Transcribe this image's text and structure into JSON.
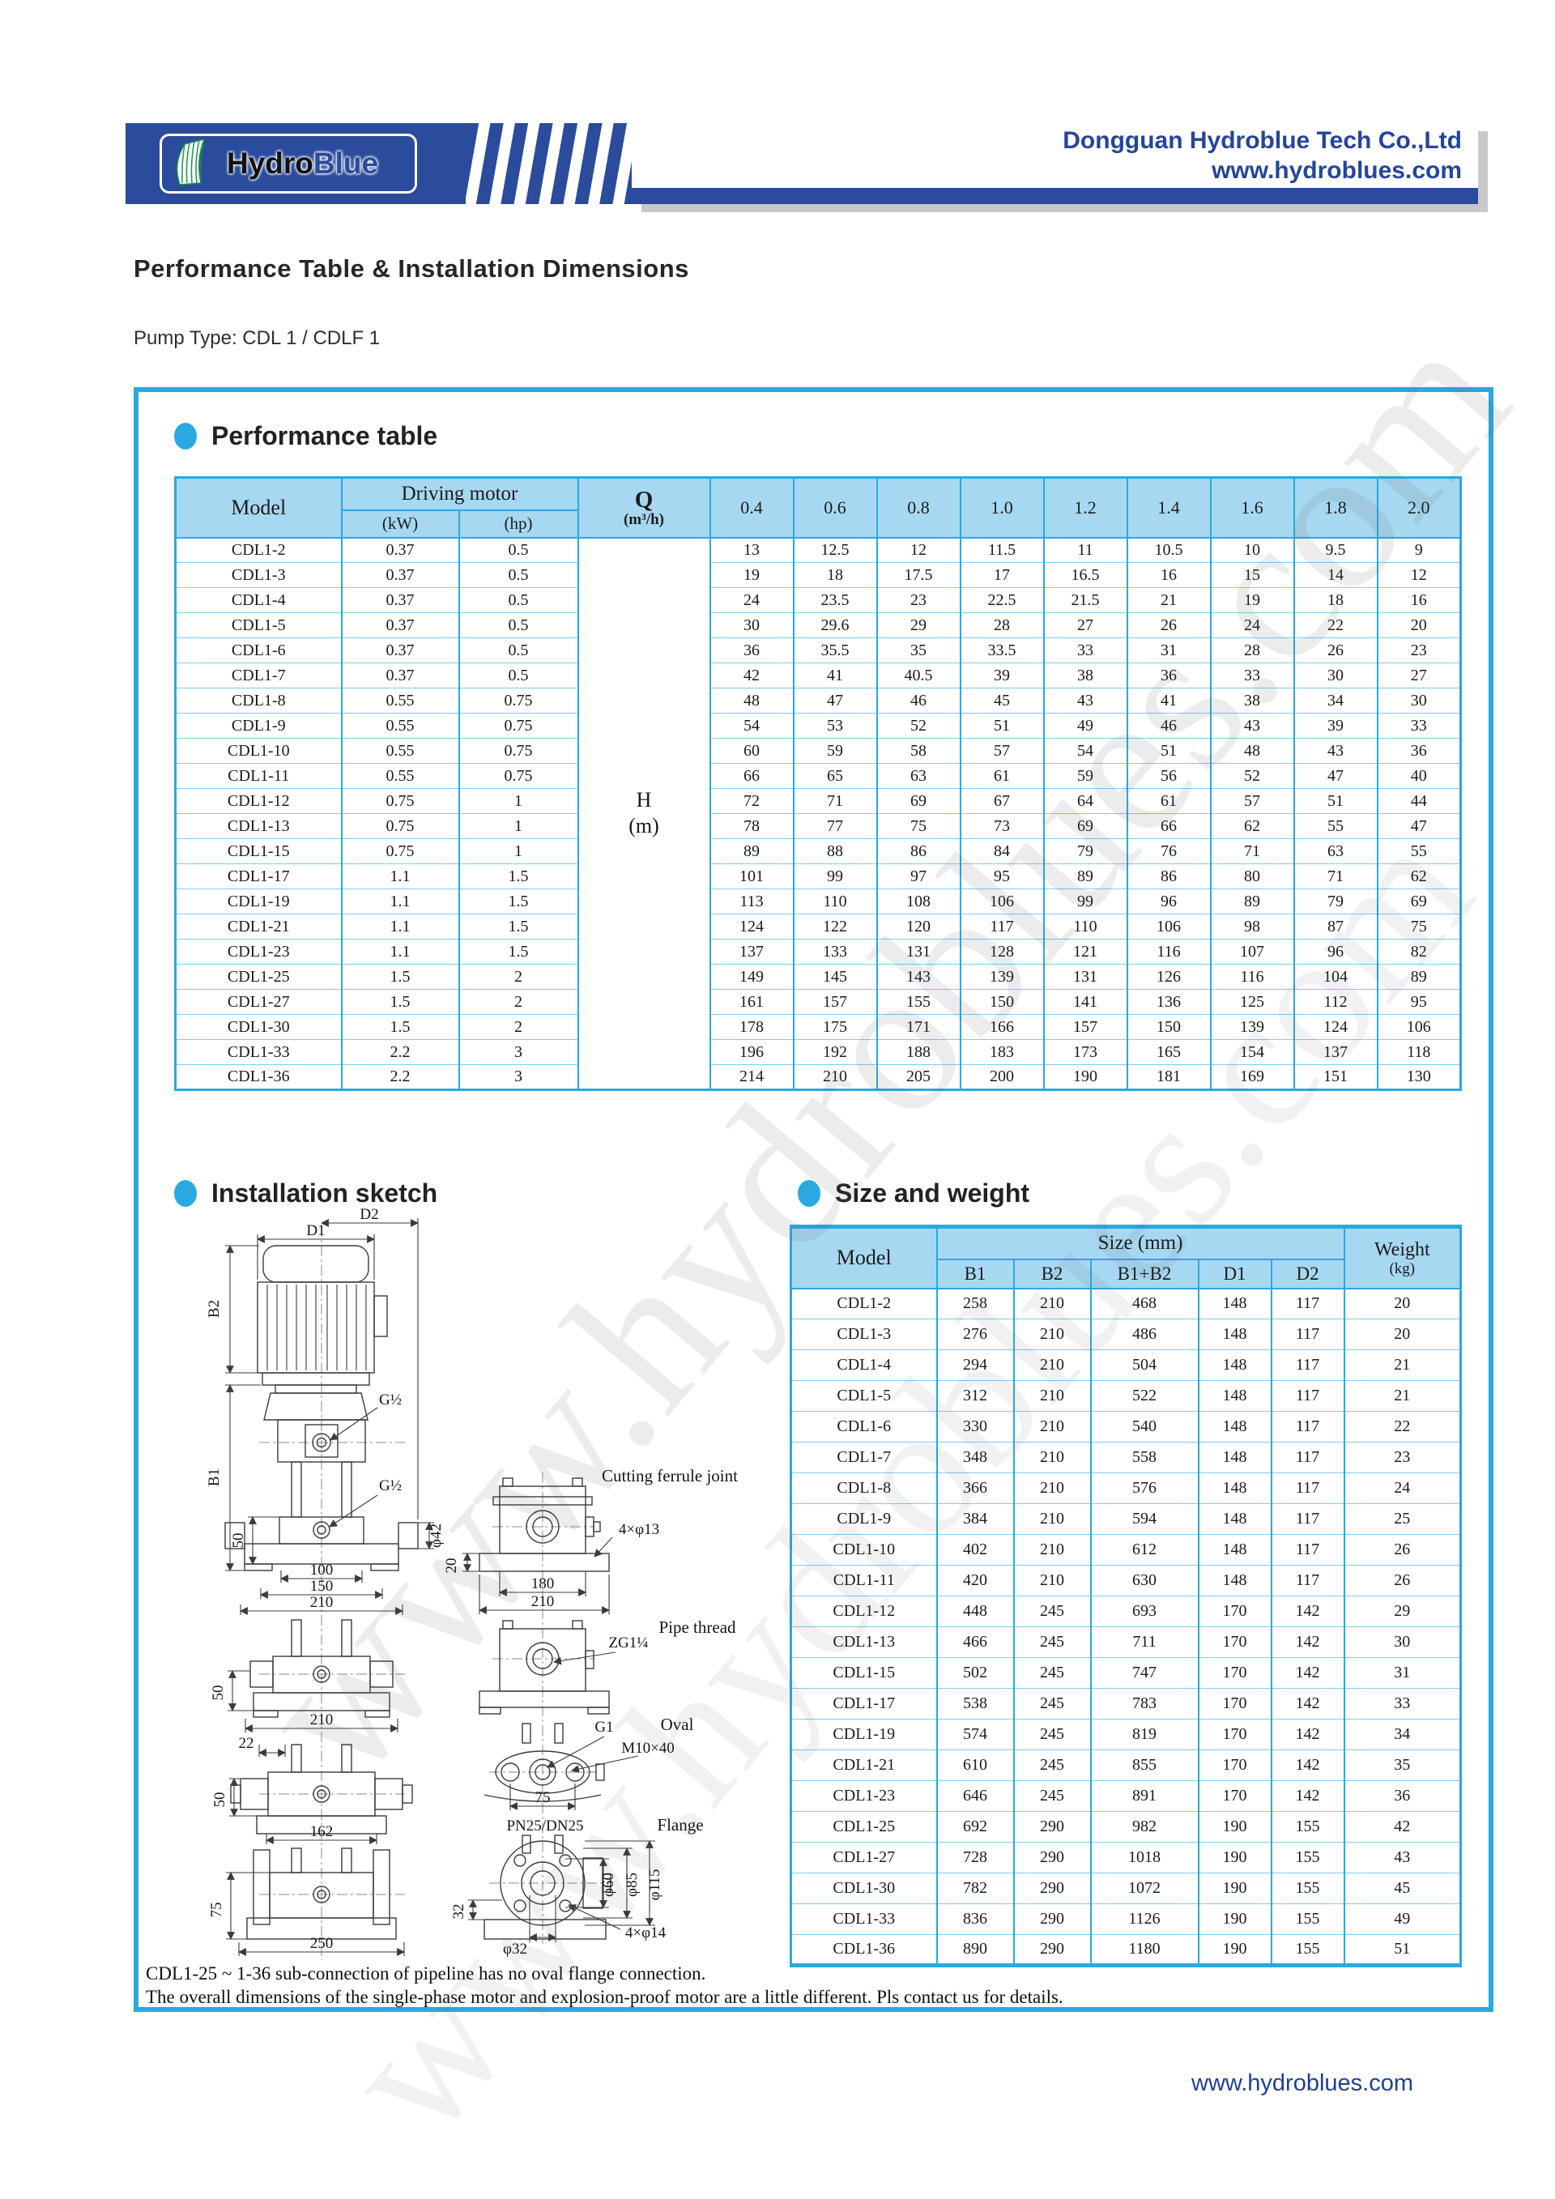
{
  "header": {
    "logo_hydro": "Hydro",
    "logo_blue": "Blue",
    "company_name": "Dongguan Hydroblue Tech Co.,Ltd",
    "website": "www.hydroblues.com"
  },
  "page": {
    "title": "Performance Table & Installation Dimensions",
    "pump_type": "Pump Type: CDL 1 / CDLF 1",
    "footer_website": "www.hydroblues.com",
    "watermark": "www.hydroblues.com"
  },
  "sections": {
    "performance": "Performance table",
    "installation": "Installation sketch",
    "size_weight": "Size and weight"
  },
  "performance_table": {
    "header": {
      "model": "Model",
      "driving_motor": "Driving motor",
      "kw": "(kW)",
      "hp": "(hp)",
      "q": "Q",
      "q_unit": "(m³/h)",
      "h_top": "H",
      "h_unit": "(m)",
      "flow_columns": [
        "0.4",
        "0.6",
        "0.8",
        "1.0",
        "1.2",
        "1.4",
        "1.6",
        "1.8",
        "2.0"
      ]
    },
    "rows": [
      {
        "model": "CDL1-2",
        "kw": "0.37",
        "hp": "0.5",
        "values": [
          "13",
          "12.5",
          "12",
          "11.5",
          "11",
          "10.5",
          "10",
          "9.5",
          "9"
        ]
      },
      {
        "model": "CDL1-3",
        "kw": "0.37",
        "hp": "0.5",
        "values": [
          "19",
          "18",
          "17.5",
          "17",
          "16.5",
          "16",
          "15",
          "14",
          "12"
        ]
      },
      {
        "model": "CDL1-4",
        "kw": "0.37",
        "hp": "0.5",
        "values": [
          "24",
          "23.5",
          "23",
          "22.5",
          "21.5",
          "21",
          "19",
          "18",
          "16"
        ]
      },
      {
        "model": "CDL1-5",
        "kw": "0.37",
        "hp": "0.5",
        "values": [
          "30",
          "29.6",
          "29",
          "28",
          "27",
          "26",
          "24",
          "22",
          "20"
        ]
      },
      {
        "model": "CDL1-6",
        "kw": "0.37",
        "hp": "0.5",
        "values": [
          "36",
          "35.5",
          "35",
          "33.5",
          "33",
          "31",
          "28",
          "26",
          "23"
        ]
      },
      {
        "model": "CDL1-7",
        "kw": "0.37",
        "hp": "0.5",
        "values": [
          "42",
          "41",
          "40.5",
          "39",
          "38",
          "36",
          "33",
          "30",
          "27"
        ]
      },
      {
        "model": "CDL1-8",
        "kw": "0.55",
        "hp": "0.75",
        "values": [
          "48",
          "47",
          "46",
          "45",
          "43",
          "41",
          "38",
          "34",
          "30"
        ]
      },
      {
        "model": "CDL1-9",
        "kw": "0.55",
        "hp": "0.75",
        "values": [
          "54",
          "53",
          "52",
          "51",
          "49",
          "46",
          "43",
          "39",
          "33"
        ]
      },
      {
        "model": "CDL1-10",
        "kw": "0.55",
        "hp": "0.75",
        "values": [
          "60",
          "59",
          "58",
          "57",
          "54",
          "51",
          "48",
          "43",
          "36"
        ]
      },
      {
        "model": "CDL1-11",
        "kw": "0.55",
        "hp": "0.75",
        "values": [
          "66",
          "65",
          "63",
          "61",
          "59",
          "56",
          "52",
          "47",
          "40"
        ]
      },
      {
        "model": "CDL1-12",
        "kw": "0.75",
        "hp": "1",
        "values": [
          "72",
          "71",
          "69",
          "67",
          "64",
          "61",
          "57",
          "51",
          "44"
        ]
      },
      {
        "model": "CDL1-13",
        "kw": "0.75",
        "hp": "1",
        "values": [
          "78",
          "77",
          "75",
          "73",
          "69",
          "66",
          "62",
          "55",
          "47"
        ]
      },
      {
        "model": "CDL1-15",
        "kw": "0.75",
        "hp": "1",
        "values": [
          "89",
          "88",
          "86",
          "84",
          "79",
          "76",
          "71",
          "63",
          "55"
        ]
      },
      {
        "model": "CDL1-17",
        "kw": "1.1",
        "hp": "1.5",
        "values": [
          "101",
          "99",
          "97",
          "95",
          "89",
          "86",
          "80",
          "71",
          "62"
        ]
      },
      {
        "model": "CDL1-19",
        "kw": "1.1",
        "hp": "1.5",
        "values": [
          "113",
          "110",
          "108",
          "106",
          "99",
          "96",
          "89",
          "79",
          "69"
        ]
      },
      {
        "model": "CDL1-21",
        "kw": "1.1",
        "hp": "1.5",
        "values": [
          "124",
          "122",
          "120",
          "117",
          "110",
          "106",
          "98",
          "87",
          "75"
        ]
      },
      {
        "model": "CDL1-23",
        "kw": "1.1",
        "hp": "1.5",
        "values": [
          "137",
          "133",
          "131",
          "128",
          "121",
          "116",
          "107",
          "96",
          "82"
        ]
      },
      {
        "model": "CDL1-25",
        "kw": "1.5",
        "hp": "2",
        "values": [
          "149",
          "145",
          "143",
          "139",
          "131",
          "126",
          "116",
          "104",
          "89"
        ]
      },
      {
        "model": "CDL1-27",
        "kw": "1.5",
        "hp": "2",
        "values": [
          "161",
          "157",
          "155",
          "150",
          "141",
          "136",
          "125",
          "112",
          "95"
        ]
      },
      {
        "model": "CDL1-30",
        "kw": "1.5",
        "hp": "2",
        "values": [
          "178",
          "175",
          "171",
          "166",
          "157",
          "150",
          "139",
          "124",
          "106"
        ]
      },
      {
        "model": "CDL1-33",
        "kw": "2.2",
        "hp": "3",
        "values": [
          "196",
          "192",
          "188",
          "183",
          "173",
          "165",
          "154",
          "137",
          "118"
        ]
      },
      {
        "model": "CDL1-36",
        "kw": "2.2",
        "hp": "3",
        "values": [
          "214",
          "210",
          "205",
          "200",
          "190",
          "181",
          "169",
          "151",
          "130"
        ]
      }
    ]
  },
  "size_weight_table": {
    "header": {
      "model": "Model",
      "size_mm": "Size (mm)",
      "weight": "Weight",
      "weight_unit": "(kg)",
      "cols": [
        "B1",
        "B2",
        "B1+B2",
        "D1",
        "D2"
      ]
    },
    "rows": [
      {
        "model": "CDL1-2",
        "b1": "258",
        "b2": "210",
        "b1b2": "468",
        "d1": "148",
        "d2": "117",
        "weight": "20"
      },
      {
        "model": "CDL1-3",
        "b1": "276",
        "b2": "210",
        "b1b2": "486",
        "d1": "148",
        "d2": "117",
        "weight": "20"
      },
      {
        "model": "CDL1-4",
        "b1": "294",
        "b2": "210",
        "b1b2": "504",
        "d1": "148",
        "d2": "117",
        "weight": "21"
      },
      {
        "model": "CDL1-5",
        "b1": "312",
        "b2": "210",
        "b1b2": "522",
        "d1": "148",
        "d2": "117",
        "weight": "21"
      },
      {
        "model": "CDL1-6",
        "b1": "330",
        "b2": "210",
        "b1b2": "540",
        "d1": "148",
        "d2": "117",
        "weight": "22"
      },
      {
        "model": "CDL1-7",
        "b1": "348",
        "b2": "210",
        "b1b2": "558",
        "d1": "148",
        "d2": "117",
        "weight": "23"
      },
      {
        "model": "CDL1-8",
        "b1": "366",
        "b2": "210",
        "b1b2": "576",
        "d1": "148",
        "d2": "117",
        "weight": "24"
      },
      {
        "model": "CDL1-9",
        "b1": "384",
        "b2": "210",
        "b1b2": "594",
        "d1": "148",
        "d2": "117",
        "weight": "25"
      },
      {
        "model": "CDL1-10",
        "b1": "402",
        "b2": "210",
        "b1b2": "612",
        "d1": "148",
        "d2": "117",
        "weight": "26"
      },
      {
        "model": "CDL1-11",
        "b1": "420",
        "b2": "210",
        "b1b2": "630",
        "d1": "148",
        "d2": "117",
        "weight": "26"
      },
      {
        "model": "CDL1-12",
        "b1": "448",
        "b2": "245",
        "b1b2": "693",
        "d1": "170",
        "d2": "142",
        "weight": "29"
      },
      {
        "model": "CDL1-13",
        "b1": "466",
        "b2": "245",
        "b1b2": "711",
        "d1": "170",
        "d2": "142",
        "weight": "30"
      },
      {
        "model": "CDL1-15",
        "b1": "502",
        "b2": "245",
        "b1b2": "747",
        "d1": "170",
        "d2": "142",
        "weight": "31"
      },
      {
        "model": "CDL1-17",
        "b1": "538",
        "b2": "245",
        "b1b2": "783",
        "d1": "170",
        "d2": "142",
        "weight": "33"
      },
      {
        "model": "CDL1-19",
        "b1": "574",
        "b2": "245",
        "b1b2": "819",
        "d1": "170",
        "d2": "142",
        "weight": "34"
      },
      {
        "model": "CDL1-21",
        "b1": "610",
        "b2": "245",
        "b1b2": "855",
        "d1": "170",
        "d2": "142",
        "weight": "35"
      },
      {
        "model": "CDL1-23",
        "b1": "646",
        "b2": "245",
        "b1b2": "891",
        "d1": "170",
        "d2": "142",
        "weight": "36"
      },
      {
        "model": "CDL1-25",
        "b1": "692",
        "b2": "290",
        "b1b2": "982",
        "d1": "190",
        "d2": "155",
        "weight": "42"
      },
      {
        "model": "CDL1-27",
        "b1": "728",
        "b2": "290",
        "b1b2": "1018",
        "d1": "190",
        "d2": "155",
        "weight": "43"
      },
      {
        "model": "CDL1-30",
        "b1": "782",
        "b2": "290",
        "b1b2": "1072",
        "d1": "190",
        "d2": "155",
        "weight": "45"
      },
      {
        "model": "CDL1-33",
        "b1": "836",
        "b2": "290",
        "b1b2": "1126",
        "d1": "190",
        "d2": "155",
        "weight": "49"
      },
      {
        "model": "CDL1-36",
        "b1": "890",
        "b2": "290",
        "b1b2": "1180",
        "d1": "190",
        "d2": "155",
        "weight": "51"
      }
    ]
  },
  "sketch": {
    "labels": {
      "d1": "D1",
      "d2": "D2",
      "b1": "B1",
      "b2": "B2",
      "g_half_upper": "G½",
      "g_half_lower": "G½",
      "dim50_a": "50",
      "dim50_b": "50",
      "dim50_c": "50",
      "phi42": "φ42",
      "dim100": "100",
      "dim150": "150",
      "dim210_a": "210",
      "dim210_b": "210",
      "dim22": "22",
      "dim162": "162",
      "dim75_left": "75",
      "dim250": "250",
      "cutting_ferrule_joint": "Cutting ferrule joint",
      "four_phi13": "4×φ13",
      "dim20": "20",
      "dim180": "180",
      "dim210_c": "210",
      "pipe_thread": "Pipe thread",
      "zg114": "ZG1¼",
      "g1": "G1",
      "oval": "Oval",
      "m10x40": "M10×40",
      "dim75_b": "75",
      "pn25": "PN25/DN25",
      "flange": "Flange",
      "dim32": "32",
      "phi32": "φ32",
      "four_phi14": "4×φ14",
      "phi60": "φ60",
      "phi85": "φ85",
      "phi115": "φ115"
    }
  },
  "notes": [
    "CDL1-25 ~ 1-36 sub-connection of pipeline has no oval flange connection.",
    "The overall dimensions of the single-phase motor and explosion-proof motor are a little different. Pls contact us for details."
  ]
}
